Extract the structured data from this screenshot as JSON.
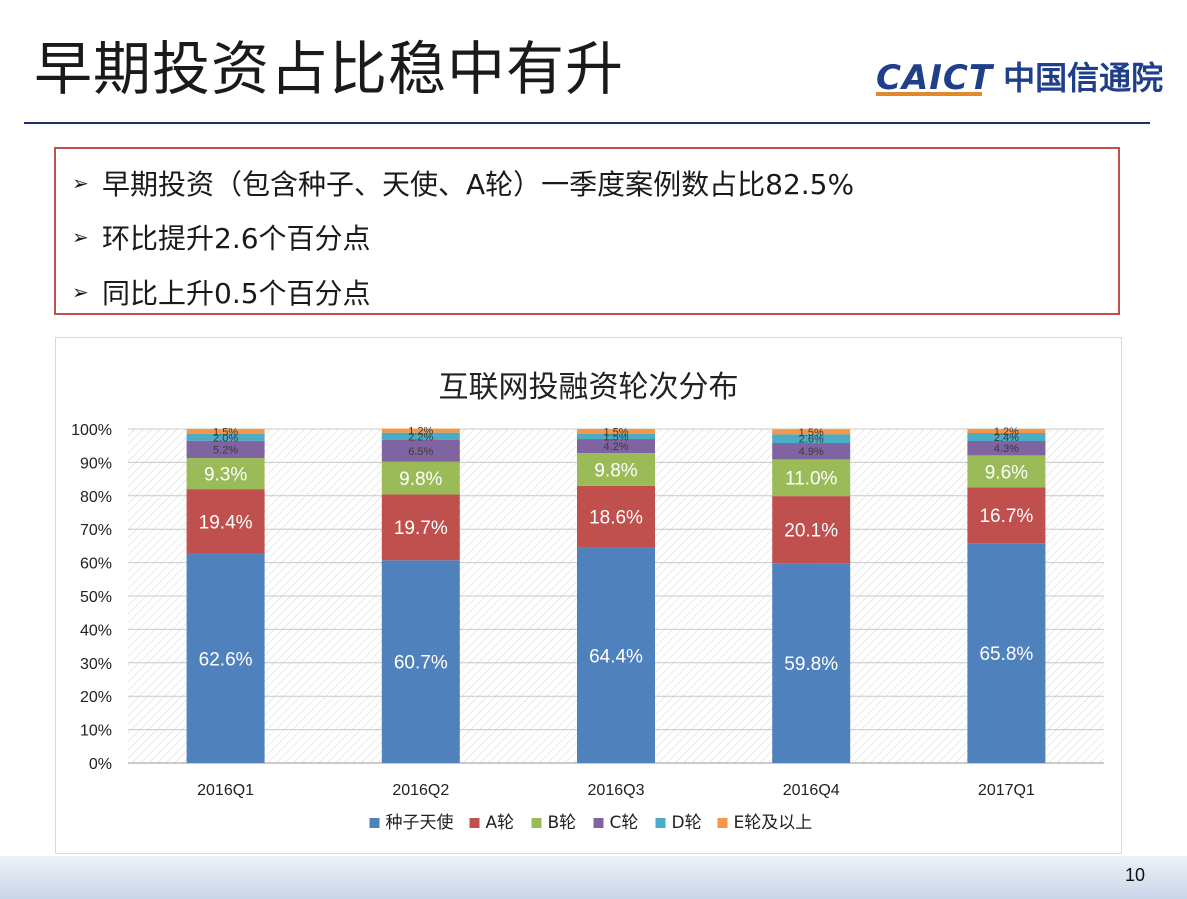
{
  "slide": {
    "title": "早期投资占比稳中有升",
    "logo_text": "CAICT",
    "logo_name": "中国信通院",
    "page_number": "10"
  },
  "bullets": [
    "早期投资（包含种子、天使、A轮）一季度案例数占比82.5%",
    "环比提升2.6个百分点",
    "同比上升0.5个百分点"
  ],
  "colors": {
    "accent_red": "#c0504d",
    "title_rule": "#1f2f6a",
    "logo_blue": "#1f3f8a",
    "logo_orange": "#e08a2e"
  },
  "chart_data": {
    "type": "bar",
    "stacked": true,
    "title": "互联网投融资轮次分布",
    "categories": [
      "2016Q1",
      "2016Q2",
      "2016Q3",
      "2016Q4",
      "2017Q1"
    ],
    "ylim": [
      0,
      100
    ],
    "yticks": [
      "0%",
      "10%",
      "20%",
      "30%",
      "40%",
      "50%",
      "60%",
      "70%",
      "80%",
      "90%",
      "100%"
    ],
    "grid": true,
    "legend_position": "bottom",
    "series": [
      {
        "name": "种子天使",
        "color": "#4f81bd",
        "values": [
          62.6,
          60.7,
          64.4,
          59.8,
          65.8
        ],
        "labels": [
          "62.6%",
          "60.7%",
          "64.4%",
          "59.8%",
          "65.8%"
        ]
      },
      {
        "name": "A轮",
        "color": "#c0504d",
        "values": [
          19.4,
          19.7,
          18.6,
          20.1,
          16.7
        ],
        "labels": [
          "19.4%",
          "19.7%",
          "18.6%",
          "20.1%",
          "16.7%"
        ]
      },
      {
        "name": "B轮",
        "color": "#9bbb59",
        "values": [
          9.3,
          9.8,
          9.8,
          11.0,
          9.6
        ],
        "labels": [
          "9.3%",
          "9.8%",
          "9.8%",
          "11.0%",
          "9.6%"
        ]
      },
      {
        "name": "C轮",
        "color": "#8064a2",
        "values": [
          5.2,
          6.5,
          4.2,
          4.9,
          4.3
        ],
        "labels": [
          "5.2%",
          "6.5%",
          "4.2%",
          "4.9%",
          "4.3%"
        ]
      },
      {
        "name": "D轮",
        "color": "#4bacc6",
        "values": [
          2.0,
          2.2,
          1.5,
          2.6,
          2.4
        ],
        "labels": [
          "2.0%",
          "2.2%",
          "1.5%",
          "2.6%",
          "2.4%"
        ]
      },
      {
        "name": "E轮及以上",
        "color": "#f79646",
        "values": [
          1.5,
          1.2,
          1.5,
          1.5,
          1.2
        ],
        "labels": [
          "1.5%",
          "1.2%",
          "1.5%",
          "1.5%",
          "1.2%"
        ]
      }
    ]
  }
}
